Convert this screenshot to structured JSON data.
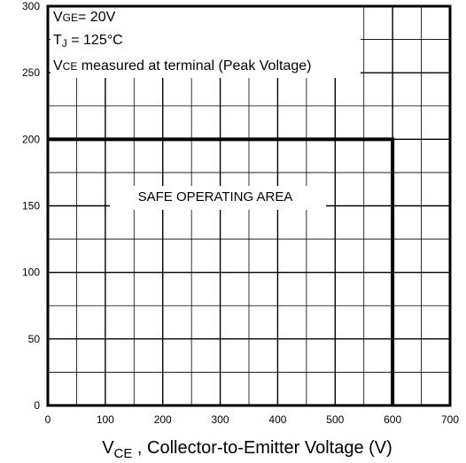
{
  "chart_data": {
    "type": "line",
    "title": "",
    "xlabel": "VCE , Collector-to-Emitter Voltage (V)",
    "xlabel_main": "V",
    "xlabel_sub": "CE",
    "xlabel_rest": " , Collector-to-Emitter Voltage (V)",
    "ylabel": "",
    "xlim": [
      0,
      700
    ],
    "ylim": [
      0,
      300
    ],
    "x_ticks": [
      0,
      100,
      200,
      300,
      400,
      500,
      600,
      700
    ],
    "y_ticks": [
      0,
      50,
      100,
      150,
      200,
      250,
      300
    ],
    "grid": true,
    "grid_minor_x_step": 50,
    "grid_minor_y_step": 25,
    "series": [
      {
        "x": [
          0,
          600,
          600
        ],
        "y": [
          200,
          200,
          0
        ],
        "color": "#000000"
      }
    ],
    "annotations": {
      "line1": {
        "main": "V",
        "sub": "GE",
        "rest": "= 20V"
      },
      "line2": {
        "main": "T",
        "sub": "J",
        "rest": "  = 125°C"
      },
      "line3": {
        "main": "V",
        "sub": "CE",
        "rest": " measured at terminal (Peak Voltage)"
      },
      "region_label": "SAFE OPERATING AREA"
    }
  }
}
